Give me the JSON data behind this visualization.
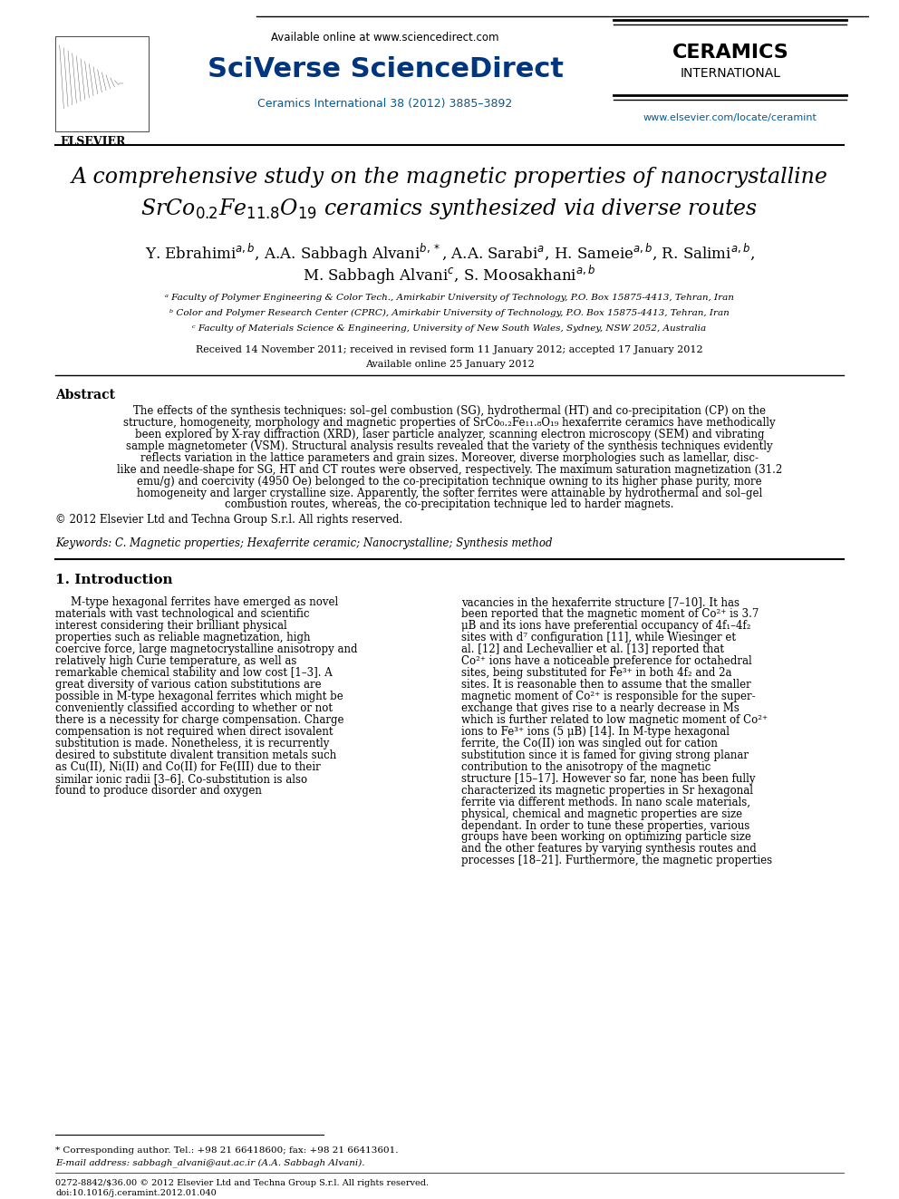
{
  "page_bg": "#ffffff",
  "header": {
    "elsevier_text": "ELSEVIER",
    "available_online": "Available online at www.sciencedirect.com",
    "sciverse_text": "SciVerse ScienceDirect",
    "journal_info": "Ceramics International 38 (2012) 3885–3892",
    "ceramics_line1": "CERAMICS",
    "ceramics_line2": "INTERNATIONAL",
    "website": "www.elsevier.com/locate/ceramint"
  },
  "title_line1": "A comprehensive study on the magnetic properties of nanocrystalline",
  "title_line2": "SrCo",
  "title_subscript1": "0.2",
  "title_middle": "Fe",
  "title_subscript2": "11.8",
  "title_middle2": "O",
  "title_subscript3": "19",
  "title_end": " ceramics synthesized via diverse routes",
  "authors": "Y. Ebrahimi ᵃʷᵇ, A.A. Sabbagh Alvani ᵇ,*, A.A. Sarabi ᵃ, H. Sameie ᵃʷᵇ, R. Salimi ᵃʷᵇ,",
  "authors2": "M. Sabbagh Alvani ᶜ, S. Moosakhani ᵃʷᵇ",
  "affil_a": "ᵃ Faculty of Polymer Engineering & Color Tech., Amirkabir University of Technology, P.O. Box 15875-4413, Tehran, Iran",
  "affil_b": "ᵇ Color and Polymer Research Center (CPRC), Amirkabir University of Technology, P.O. Box 15875-4413, Tehran, Iran",
  "affil_c": "ᶜ Faculty of Materials Science & Engineering, University of New South Wales, Sydney, NSW 2052, Australia",
  "received": "Received 14 November 2011; received in revised form 11 January 2012; accepted 17 January 2012",
  "available": "Available online 25 January 2012",
  "abstract_title": "Abstract",
  "abstract_text": "The effects of the synthesis techniques: sol–gel combustion (SG), hydrothermal (HT) and co-precipitation (CP) on the structure, homogeneity, morphology and magnetic properties of SrCo₀.₂Fe₁₁.₈O₁₉ hexaferrite ceramics have methodically been explored by X-ray diffraction (XRD), laser particle analyzer, scanning electron microscopy (SEM) and vibrating sample magnetometer (VSM). Structural analysis results revealed that the variety of the synthesis techniques evidently reflects variation in the lattice parameters and grain sizes. Moreover, diverse morphologies such as lamellar, disc-like and needle-shape for SG, HT and CT routes were observed, respectively. The maximum saturation magnetization (31.2 emu/g) and coercivity (4950 Oe) belonged to the co-precipitation technique owning to its higher phase purity, more homogeneity and larger crystalline size. Apparently, the softer ferrites were attainable by hydrothermal and sol–gel combustion routes, whereas, the co-precipitation technique led to harder magnets.",
  "copyright": "© 2012 Elsevier Ltd and Techna Group S.r.l. All rights reserved.",
  "keywords_label": "Keywords:",
  "keywords_text": " C. Magnetic properties; Hexaferrite ceramic; Nanocrystalline; Synthesis method",
  "intro_title": "1. Introduction",
  "intro_col1": "M-type hexagonal ferrites have emerged as novel materials with vast technological and scientific interest considering their brilliant physical properties such as reliable magnetization, high coercive force, large magnetocrystalline anisotropy and relatively high Curie temperature, as well as remarkable chemical stability and low cost [1–3]. A great diversity of various cation substitutions are possible in M-type hexagonal ferrites which might be conveniently classified according to whether or not there is a necessity for charge compensation. Charge compensation is not required when direct isovalent substitution is made. Nonetheless, it is recurrently desired to substitute divalent transition metals such as Cu(II), Ni(II) and Co(II) for Fe(III) due to their similar ionic radii [3–6]. Co-substitution is also found to produce disorder and oxygen",
  "intro_col2": "vacancies in the hexaferrite structure [7–10]. It has been reported that the magnetic moment of Co²⁺ is 3.7 μB and its ions have preferential occupancy of 4f₁–4f₂ sites with d⁷ configuration [11], while Wiesinger et al. [12] and Lechevallier et al. [13] reported that Co²⁺ ions have a noticeable preference for octahedral sites, being substituted for Fe³⁺ in both 4f₂ and 2a sites. It is reasonable then to assume that the smaller magnetic moment of Co²⁺ is responsible for the super-exchange that gives rise to a nearly decrease in Ms which is further related to low magnetic moment of Co²⁺ ions to Fe³⁺ ions (5 μB) [14]. In M-type hexagonal ferrite, the Co(II) ion was singled out for cation substitution since it is famed for giving strong planar contribution to the anisotropy of the magnetic structure [15–17]. However so far, none has been fully characterized its magnetic properties in Sr hexagonal ferrite via different methods. In nano scale materials, physical, chemical and magnetic properties are size dependant. In order to tune these properties, various groups have been working on optimizing particle size and the other features by varying synthesis routes and processes [18–21]. Furthermore, the magnetic properties",
  "footnote_star": "* Corresponding author. Tel.: +98 21 66418600; fax: +98 21 66413601.",
  "footnote_email": "E-mail address: sabbagh_alvani@aut.ac.ir (A.A. Sabbagh Alvani).",
  "footer_line1": "0272-8842/$36.00 © 2012 Elsevier Ltd and Techna Group S.r.l. All rights reserved.",
  "footer_line2": "doi:10.1016/j.ceramint.2012.01.040",
  "colors": {
    "sciverse_blue": "#003580",
    "journal_blue": "#005B9A",
    "ceramics_black": "#000000",
    "link_blue": "#0070C0",
    "text_black": "#000000",
    "separator_line": "#000000"
  }
}
